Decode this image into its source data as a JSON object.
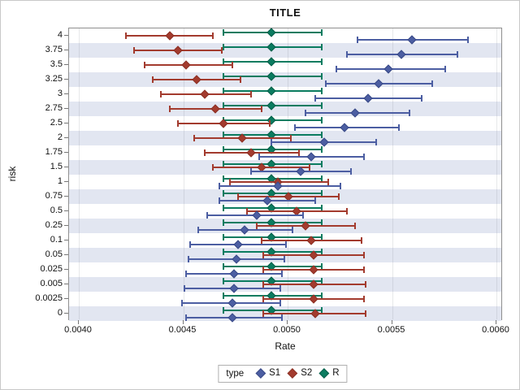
{
  "title": "TITLE",
  "chart_data": {
    "type": "scatter",
    "subtype": "grouped-dot-plot-with-error-bars",
    "title": "TITLE",
    "xlabel": "Rate",
    "ylabel": "risk",
    "grid": true,
    "band_color": "#e2e6f1",
    "x_axis": {
      "min": 0.004,
      "max": 0.006,
      "ticks": [
        {
          "value": 0.004,
          "label": "0.0040"
        },
        {
          "value": 0.0045,
          "label": "0.0045"
        },
        {
          "value": 0.005,
          "label": "0.0050"
        },
        {
          "value": 0.0055,
          "label": "0.0055"
        },
        {
          "value": 0.006,
          "label": "0.0060"
        }
      ]
    },
    "categories": [
      "4",
      "3.75",
      "3.5",
      "3.25",
      "3",
      "2.75",
      "2.5",
      "2",
      "1.75",
      "1.5",
      "1",
      "0.75",
      "0.5",
      "0.25",
      "0.1",
      "0.05",
      "0.025",
      "0.005",
      "0.0025",
      "0"
    ],
    "legend": {
      "label": "type",
      "position": "bottom",
      "order": [
        "S1",
        "S2",
        "R"
      ]
    },
    "series": [
      {
        "name": "S1",
        "fill": "#4c5ea2",
        "stroke": "#3b4b87",
        "points": [
          {
            "risk": "4",
            "value": 0.00559,
            "lo": 0.00533,
            "hi": 0.00586
          },
          {
            "risk": "3.75",
            "value": 0.00554,
            "lo": 0.00528,
            "hi": 0.00581
          },
          {
            "risk": "3.5",
            "value": 0.00548,
            "lo": 0.00523,
            "hi": 0.00575
          },
          {
            "risk": "3.25",
            "value": 0.00543,
            "lo": 0.00518,
            "hi": 0.00569
          },
          {
            "risk": "3",
            "value": 0.00538,
            "lo": 0.00513,
            "hi": 0.00564
          },
          {
            "risk": "2.75",
            "value": 0.00532,
            "lo": 0.00508,
            "hi": 0.00558
          },
          {
            "risk": "2.5",
            "value": 0.00527,
            "lo": 0.00503,
            "hi": 0.00553
          },
          {
            "risk": "2",
            "value": 0.00517,
            "lo": 0.00492,
            "hi": 0.00542
          },
          {
            "risk": "1.75",
            "value": 0.00511,
            "lo": 0.00486,
            "hi": 0.00536
          },
          {
            "risk": "1.5",
            "value": 0.00506,
            "lo": 0.00482,
            "hi": 0.0053
          },
          {
            "risk": "1",
            "value": 0.00495,
            "lo": 0.00467,
            "hi": 0.00525
          },
          {
            "risk": "0.75",
            "value": 0.0049,
            "lo": 0.00467,
            "hi": 0.00513
          },
          {
            "risk": "0.5",
            "value": 0.00485,
            "lo": 0.00461,
            "hi": 0.00507
          },
          {
            "risk": "0.25",
            "value": 0.00479,
            "lo": 0.00457,
            "hi": 0.00502
          },
          {
            "risk": "0.1",
            "value": 0.00476,
            "lo": 0.00453,
            "hi": 0.00499
          },
          {
            "risk": "0.05",
            "value": 0.00475,
            "lo": 0.00452,
            "hi": 0.00498
          },
          {
            "risk": "0.025",
            "value": 0.00474,
            "lo": 0.00451,
            "hi": 0.00497
          },
          {
            "risk": "0.005",
            "value": 0.00474,
            "lo": 0.0045,
            "hi": 0.00496
          },
          {
            "risk": "0.0025",
            "value": 0.00473,
            "lo": 0.00449,
            "hi": 0.00496
          },
          {
            "risk": "0",
            "value": 0.00473,
            "lo": 0.00451,
            "hi": 0.00497
          }
        ]
      },
      {
        "name": "S2",
        "fill": "#a33b2e",
        "stroke": "#8c3226",
        "points": [
          {
            "risk": "4",
            "value": 0.00443,
            "lo": 0.00422,
            "hi": 0.00464
          },
          {
            "risk": "3.75",
            "value": 0.00447,
            "lo": 0.00426,
            "hi": 0.00468
          },
          {
            "risk": "3.5",
            "value": 0.00451,
            "lo": 0.00431,
            "hi": 0.00473
          },
          {
            "risk": "3.25",
            "value": 0.00456,
            "lo": 0.00435,
            "hi": 0.00477
          },
          {
            "risk": "3",
            "value": 0.0046,
            "lo": 0.00439,
            "hi": 0.00482
          },
          {
            "risk": "2.75",
            "value": 0.00465,
            "lo": 0.00443,
            "hi": 0.00487
          },
          {
            "risk": "2.5",
            "value": 0.00469,
            "lo": 0.00447,
            "hi": 0.00491
          },
          {
            "risk": "2",
            "value": 0.00478,
            "lo": 0.00455,
            "hi": 0.00501
          },
          {
            "risk": "1.75",
            "value": 0.00482,
            "lo": 0.0046,
            "hi": 0.00505
          },
          {
            "risk": "1.5",
            "value": 0.00487,
            "lo": 0.00464,
            "hi": 0.0051
          },
          {
            "risk": "1",
            "value": 0.00495,
            "lo": 0.00472,
            "hi": 0.00519
          },
          {
            "risk": "0.75",
            "value": 0.005,
            "lo": 0.00476,
            "hi": 0.00524
          },
          {
            "risk": "0.5",
            "value": 0.00504,
            "lo": 0.0048,
            "hi": 0.00528
          },
          {
            "risk": "0.25",
            "value": 0.00508,
            "lo": 0.00485,
            "hi": 0.00532
          },
          {
            "risk": "0.1",
            "value": 0.00511,
            "lo": 0.00487,
            "hi": 0.00535
          },
          {
            "risk": "0.05",
            "value": 0.00512,
            "lo": 0.00488,
            "hi": 0.00536
          },
          {
            "risk": "0.025",
            "value": 0.00512,
            "lo": 0.00488,
            "hi": 0.00536
          },
          {
            "risk": "0.005",
            "value": 0.00512,
            "lo": 0.00488,
            "hi": 0.00537
          },
          {
            "risk": "0.0025",
            "value": 0.00512,
            "lo": 0.00488,
            "hi": 0.00536
          },
          {
            "risk": "0",
            "value": 0.00513,
            "lo": 0.00488,
            "hi": 0.00537
          }
        ]
      },
      {
        "name": "R",
        "fill": "#0b7c60",
        "stroke": "#075e49",
        "points": [
          {
            "risk": "4",
            "value": 0.00492,
            "lo": 0.00469,
            "hi": 0.00516
          },
          {
            "risk": "3.75",
            "value": 0.00492,
            "lo": 0.00469,
            "hi": 0.00516
          },
          {
            "risk": "3.5",
            "value": 0.00492,
            "lo": 0.00469,
            "hi": 0.00516
          },
          {
            "risk": "3.25",
            "value": 0.00492,
            "lo": 0.00469,
            "hi": 0.00516
          },
          {
            "risk": "3",
            "value": 0.00492,
            "lo": 0.00469,
            "hi": 0.00516
          },
          {
            "risk": "2.75",
            "value": 0.00492,
            "lo": 0.00469,
            "hi": 0.00516
          },
          {
            "risk": "2.5",
            "value": 0.00492,
            "lo": 0.00469,
            "hi": 0.00516
          },
          {
            "risk": "2",
            "value": 0.00492,
            "lo": 0.00469,
            "hi": 0.00516
          },
          {
            "risk": "1.75",
            "value": 0.00492,
            "lo": 0.00469,
            "hi": 0.00516
          },
          {
            "risk": "1.5",
            "value": 0.00492,
            "lo": 0.00469,
            "hi": 0.00516
          },
          {
            "risk": "1",
            "value": 0.00492,
            "lo": 0.00469,
            "hi": 0.00516
          },
          {
            "risk": "0.75",
            "value": 0.00492,
            "lo": 0.00469,
            "hi": 0.00516
          },
          {
            "risk": "0.5",
            "value": 0.00492,
            "lo": 0.00469,
            "hi": 0.00516
          },
          {
            "risk": "0.25",
            "value": 0.00492,
            "lo": 0.00469,
            "hi": 0.00516
          },
          {
            "risk": "0.1",
            "value": 0.00492,
            "lo": 0.00469,
            "hi": 0.00516
          },
          {
            "risk": "0.05",
            "value": 0.00492,
            "lo": 0.00469,
            "hi": 0.00516
          },
          {
            "risk": "0.025",
            "value": 0.00492,
            "lo": 0.00469,
            "hi": 0.00516
          },
          {
            "risk": "0.005",
            "value": 0.00492,
            "lo": 0.00469,
            "hi": 0.00516
          },
          {
            "risk": "0.0025",
            "value": 0.00492,
            "lo": 0.00469,
            "hi": 0.00516
          },
          {
            "risk": "0",
            "value": 0.00492,
            "lo": 0.00469,
            "hi": 0.00516
          }
        ]
      }
    ]
  }
}
